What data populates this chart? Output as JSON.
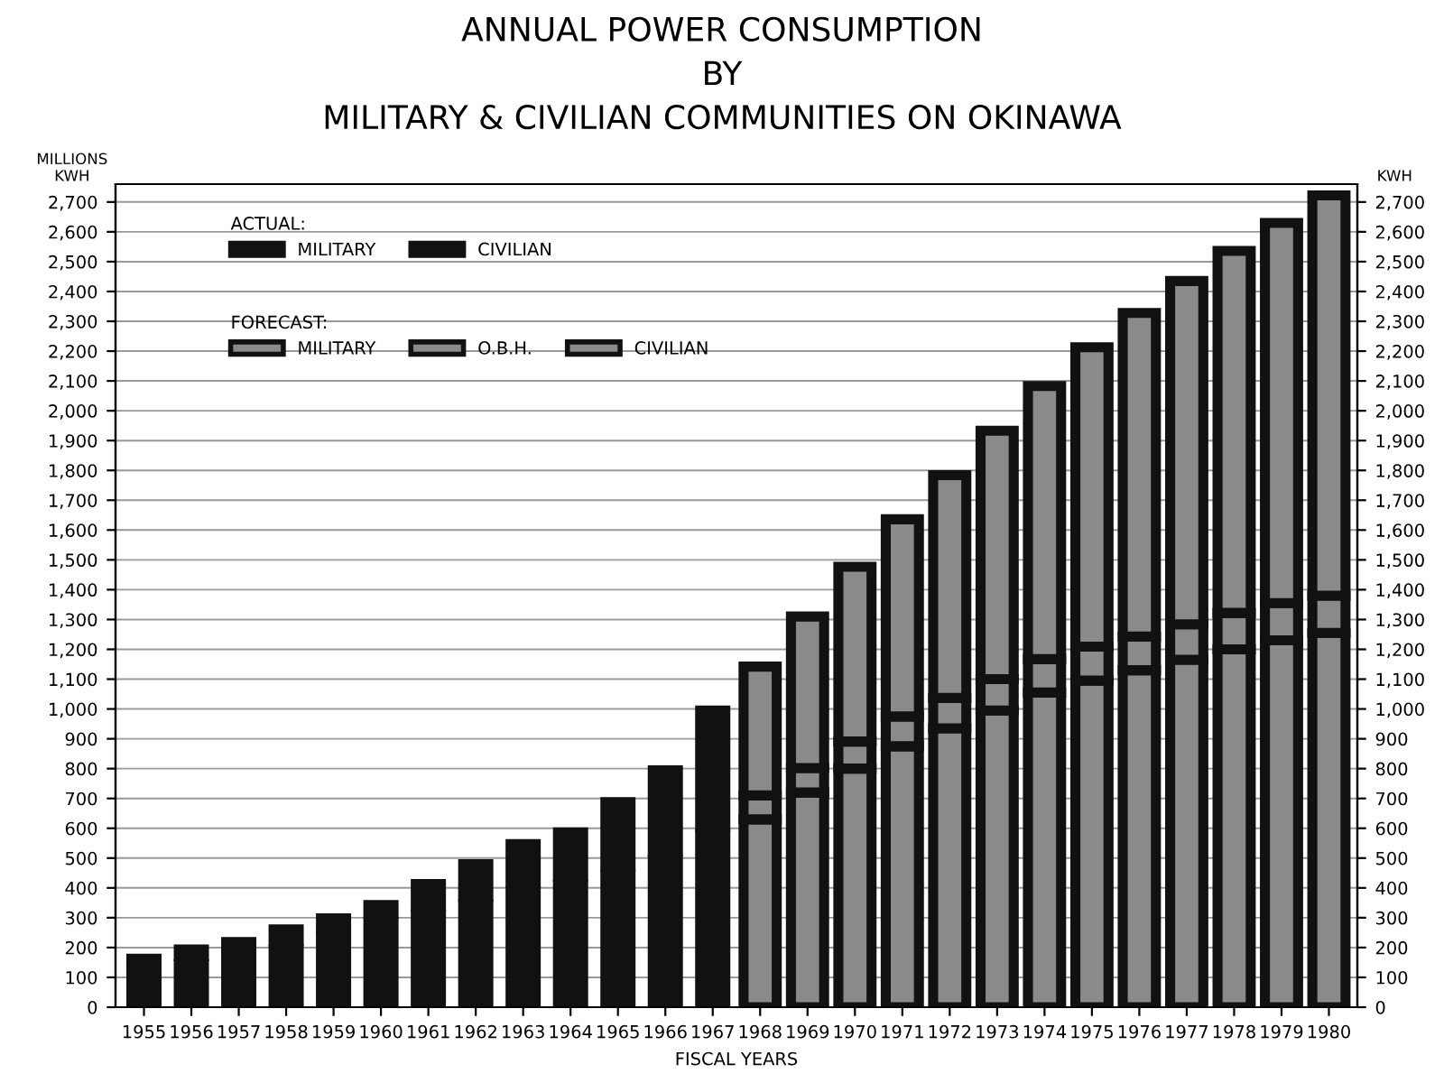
{
  "chart_data": {
    "type": "bar",
    "stacked": true,
    "title": "ANNUAL POWER CONSUMPTION\nBY\nMILITARY & CIVILIAN COMMUNITIES ON OKINAWA",
    "xlabel": "FISCAL YEARS",
    "ylabel": "MILLIONS\nKWH",
    "y2label": "KWH",
    "annotations": [
      "ACTUAL:",
      "FORECAST:"
    ],
    "categories": [
      "1955",
      "1956",
      "1957",
      "1958",
      "1959",
      "1960",
      "1961",
      "1962",
      "1963",
      "1964",
      "1965",
      "1966",
      "1967",
      "1968",
      "1969",
      "1970",
      "1971",
      "1972",
      "1973",
      "1974",
      "1975",
      "1976",
      "1977",
      "1978",
      "1979",
      "1980"
    ],
    "series": [
      {
        "name": "MILITARY",
        "colors": [
          "#111111",
          "#111111",
          "#111111",
          "#111111",
          "#111111",
          "#111111",
          "#111111",
          "#111111",
          "#111111",
          "#111111",
          "#111111",
          "#111111",
          "#111111",
          "#8a8a8a",
          "#8a8a8a",
          "#8a8a8a",
          "#8a8a8a",
          "#8a8a8a",
          "#8a8a8a",
          "#8a8a8a",
          "#8a8a8a",
          "#8a8a8a",
          "#8a8a8a",
          "#8a8a8a",
          "#8a8a8a",
          "#8a8a8a"
        ],
        "values": [
          140,
          158,
          190,
          208,
          248,
          300,
          324,
          358,
          402,
          424,
          458,
          508,
          592,
          630,
          720,
          800,
          875,
          935,
          995,
          1055,
          1095,
          1130,
          1165,
          1200,
          1230,
          1255
        ]
      },
      {
        "name": "O.B.H.",
        "colors": [
          null,
          null,
          null,
          null,
          null,
          null,
          null,
          null,
          null,
          null,
          null,
          null,
          null,
          "#8a8a8a",
          "#8a8a8a",
          "#8a8a8a",
          "#8a8a8a",
          "#8a8a8a",
          "#8a8a8a",
          "#8a8a8a",
          "#8a8a8a",
          "#8a8a8a",
          "#8a8a8a",
          "#8a8a8a",
          "#8a8a8a",
          "#8a8a8a"
        ],
        "values": [
          null,
          null,
          null,
          null,
          null,
          null,
          null,
          null,
          null,
          null,
          null,
          null,
          null,
          80,
          82,
          91,
          100,
          102,
          105,
          112,
          114,
          113,
          119,
          122,
          125,
          125
        ]
      },
      {
        "name": "CIVILIAN",
        "colors": [
          "#111111",
          "#111111",
          "#111111",
          "#111111",
          "#111111",
          "#111111",
          "#111111",
          "#111111",
          "#111111",
          "#111111",
          "#111111",
          "#111111",
          "#111111",
          "#8a8a8a",
          "#8a8a8a",
          "#8a8a8a",
          "#8a8a8a",
          "#8a8a8a",
          "#8a8a8a",
          "#8a8a8a",
          "#8a8a8a",
          "#8a8a8a",
          "#8a8a8a",
          "#8a8a8a",
          "#8a8a8a",
          "#8a8a8a"
        ],
        "values": [
          36,
          49,
          42,
          66,
          63,
          56,
          102,
          135,
          158,
          176,
          243,
          300,
          416,
          432,
          508,
          586,
          661,
          747,
          833,
          916,
          1004,
          1085,
          1151,
          1214,
          1275,
          1342
        ]
      }
    ],
    "ylim": [
      0,
      2760
    ],
    "y2lim": [
      0,
      2760
    ],
    "yticks": [
      0,
      100,
      200,
      300,
      400,
      500,
      600,
      700,
      800,
      900,
      {
        "value": 1000,
        "label": "1,000"
      },
      {
        "value": 1100,
        "label": "1,100"
      },
      {
        "value": 1200,
        "label": "1,200"
      },
      {
        "value": 1300,
        "label": "1,300"
      },
      {
        "value": 1400,
        "label": "1,400"
      },
      {
        "value": 1500,
        "label": "1,500"
      },
      {
        "value": 1600,
        "label": "1,600"
      },
      {
        "value": 1700,
        "label": "1,700"
      },
      {
        "value": 1800,
        "label": "1,800"
      },
      {
        "value": 1900,
        "label": "1,900"
      },
      {
        "value": 2000,
        "label": "2,000"
      },
      {
        "value": 2100,
        "label": "2,100"
      },
      {
        "value": 2200,
        "label": "2,200"
      },
      {
        "value": 2300,
        "label": "2,300"
      },
      {
        "value": 2400,
        "label": "2,400"
      },
      {
        "value": 2500,
        "label": "2,500"
      },
      {
        "value": 2600,
        "label": "2,600"
      },
      {
        "value": 2700,
        "label": "2,700"
      }
    ],
    "y2ticks": [
      0,
      100,
      200,
      300,
      400,
      500,
      600,
      700,
      800,
      900,
      {
        "value": 1000,
        "label": "1,000"
      },
      {
        "value": 1100,
        "label": "1,100"
      },
      {
        "value": 1200,
        "label": "1,200"
      },
      {
        "value": 1300,
        "label": "1,300"
      },
      {
        "value": 1400,
        "label": "1,400"
      },
      {
        "value": 1500,
        "label": "1,500"
      },
      {
        "value": 1600,
        "label": "1,600"
      },
      {
        "value": 1700,
        "label": "1,700"
      },
      {
        "value": 1800,
        "label": "1,800"
      },
      {
        "value": 1900,
        "label": "1,900"
      },
      {
        "value": 2000,
        "label": "2,000"
      },
      {
        "value": 2100,
        "label": "2,100"
      },
      {
        "value": 2200,
        "label": "2,200"
      },
      {
        "value": 2300,
        "label": "2,300"
      },
      {
        "value": 2400,
        "label": "2,400"
      },
      {
        "value": 2500,
        "label": "2,500"
      },
      {
        "value": 2600,
        "label": "2,600"
      },
      {
        "value": 2700,
        "label": "2,700"
      }
    ],
    "grid": "y",
    "legend": "top left"
  }
}
